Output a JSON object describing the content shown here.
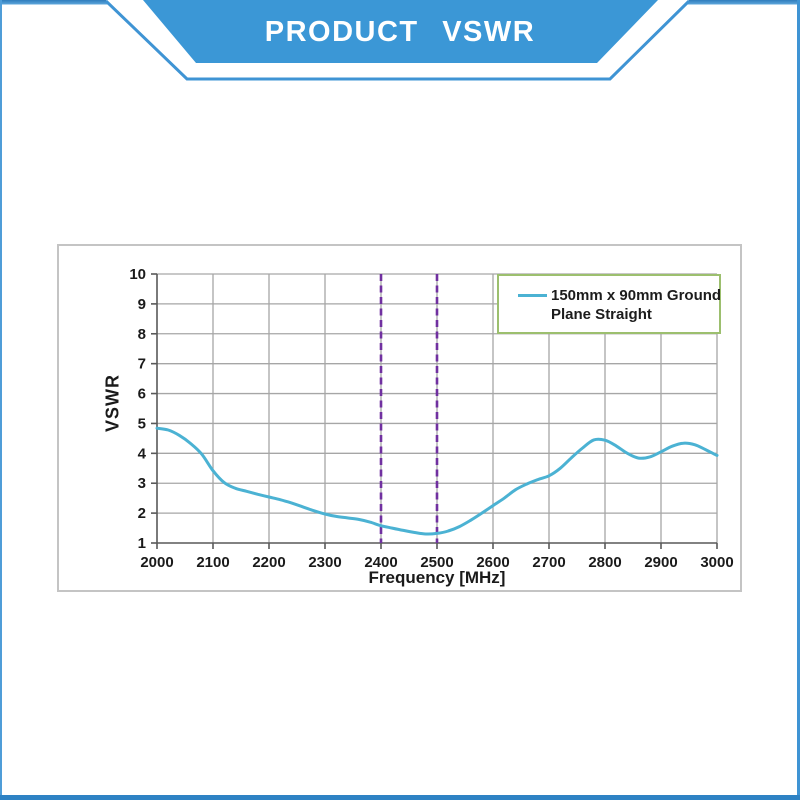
{
  "header": {
    "title": "PRODUCT VSWR"
  },
  "colors": {
    "banner_fill": "#3b97d6",
    "banner_stroke": "#3f94d4",
    "frame_top_dark": "#2f7cbd",
    "frame_top_light": "#5ea8dc",
    "curve_teal": "#4bb2d3",
    "marker_purple": "#7030a0",
    "grid_gray": "#a6a6a6",
    "axis_dark": "#595959",
    "legend_border_green": "#9cbf6e",
    "panel_border_gray": "#c4c4c4",
    "text_dark": "#1a1a1a"
  },
  "chart_data": {
    "type": "line",
    "title": "",
    "xlabel": "Frequency [MHz]",
    "ylabel": "VSWR",
    "xlim": [
      2000,
      3000
    ],
    "ylim": [
      1,
      10
    ],
    "x_ticks": [
      2000,
      2100,
      2200,
      2300,
      2400,
      2500,
      2600,
      2700,
      2800,
      2900,
      3000
    ],
    "y_ticks": [
      1,
      2,
      3,
      4,
      5,
      6,
      7,
      8,
      9,
      10
    ],
    "grid": true,
    "legend_position": "top-right",
    "legend": {
      "line1": "150mm x 90mm Ground",
      "line2": "Plane Straight"
    },
    "reference_lines": [
      {
        "axis": "x",
        "value": 2400,
        "style": "dashed",
        "color": "#7030a0"
      },
      {
        "axis": "x",
        "value": 2500,
        "style": "dashed",
        "color": "#7030a0"
      }
    ],
    "series": [
      {
        "name": "150mm x 90mm Ground Plane Straight",
        "color": "#4bb2d3",
        "x": [
          2000,
          2020,
          2040,
          2060,
          2080,
          2100,
          2120,
          2140,
          2160,
          2180,
          2200,
          2220,
          2240,
          2260,
          2280,
          2300,
          2320,
          2340,
          2360,
          2380,
          2400,
          2420,
          2440,
          2460,
          2480,
          2500,
          2520,
          2540,
          2560,
          2580,
          2600,
          2620,
          2640,
          2660,
          2680,
          2700,
          2720,
          2740,
          2760,
          2780,
          2800,
          2820,
          2840,
          2860,
          2880,
          2900,
          2920,
          2940,
          2960,
          2980,
          3000
        ],
        "y": [
          4.84,
          4.78,
          4.6,
          4.33,
          3.97,
          3.42,
          3.02,
          2.83,
          2.73,
          2.63,
          2.54,
          2.45,
          2.34,
          2.21,
          2.08,
          1.97,
          1.89,
          1.84,
          1.79,
          1.7,
          1.58,
          1.5,
          1.42,
          1.35,
          1.3,
          1.32,
          1.4,
          1.55,
          1.76,
          2.0,
          2.25,
          2.5,
          2.78,
          2.97,
          3.12,
          3.25,
          3.5,
          3.85,
          4.18,
          4.45,
          4.44,
          4.25,
          4.0,
          3.84,
          3.88,
          4.05,
          4.24,
          4.34,
          4.29,
          4.12,
          3.93
        ]
      }
    ]
  }
}
